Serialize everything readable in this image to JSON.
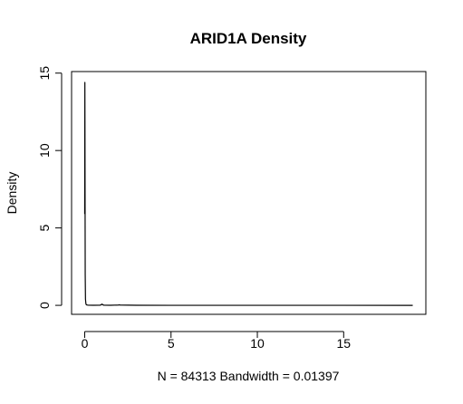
{
  "chart_data": {
    "type": "line",
    "title": "ARID1A Density",
    "xlabel": "N = 84313   Bandwidth = 0.01397",
    "ylabel": "Density",
    "xlim": [
      -0.76,
      19.76
    ],
    "ylim": [
      -0.58,
      15.1
    ],
    "x_ticks": [
      0,
      5,
      10,
      15
    ],
    "y_ticks": [
      0,
      5,
      10,
      15
    ],
    "x_tick_labels": [
      "0",
      "5",
      "10",
      "15"
    ],
    "y_tick_labels": [
      "0",
      "5",
      "10",
      "15"
    ],
    "grid": false,
    "legend": "none",
    "series": [
      {
        "x": [
          0.0,
          0.01,
          0.02,
          0.03,
          0.045,
          0.07,
          0.1,
          0.2,
          0.5,
          0.9,
          0.98,
          1.0,
          1.02,
          1.1,
          1.5,
          1.95,
          2.0,
          2.05,
          3.0,
          5.0,
          8.0,
          12.0,
          15.0,
          19.0
        ],
        "y": [
          5.9,
          14.4,
          8.0,
          2.0,
          0.4,
          0.1,
          0.03,
          0.01,
          0.005,
          0.01,
          0.06,
          0.08,
          0.06,
          0.01,
          0.005,
          0.02,
          0.03,
          0.02,
          0.005,
          0.002,
          0.002,
          0.002,
          0.002,
          0.0
        ],
        "color": "#000000"
      }
    ]
  }
}
